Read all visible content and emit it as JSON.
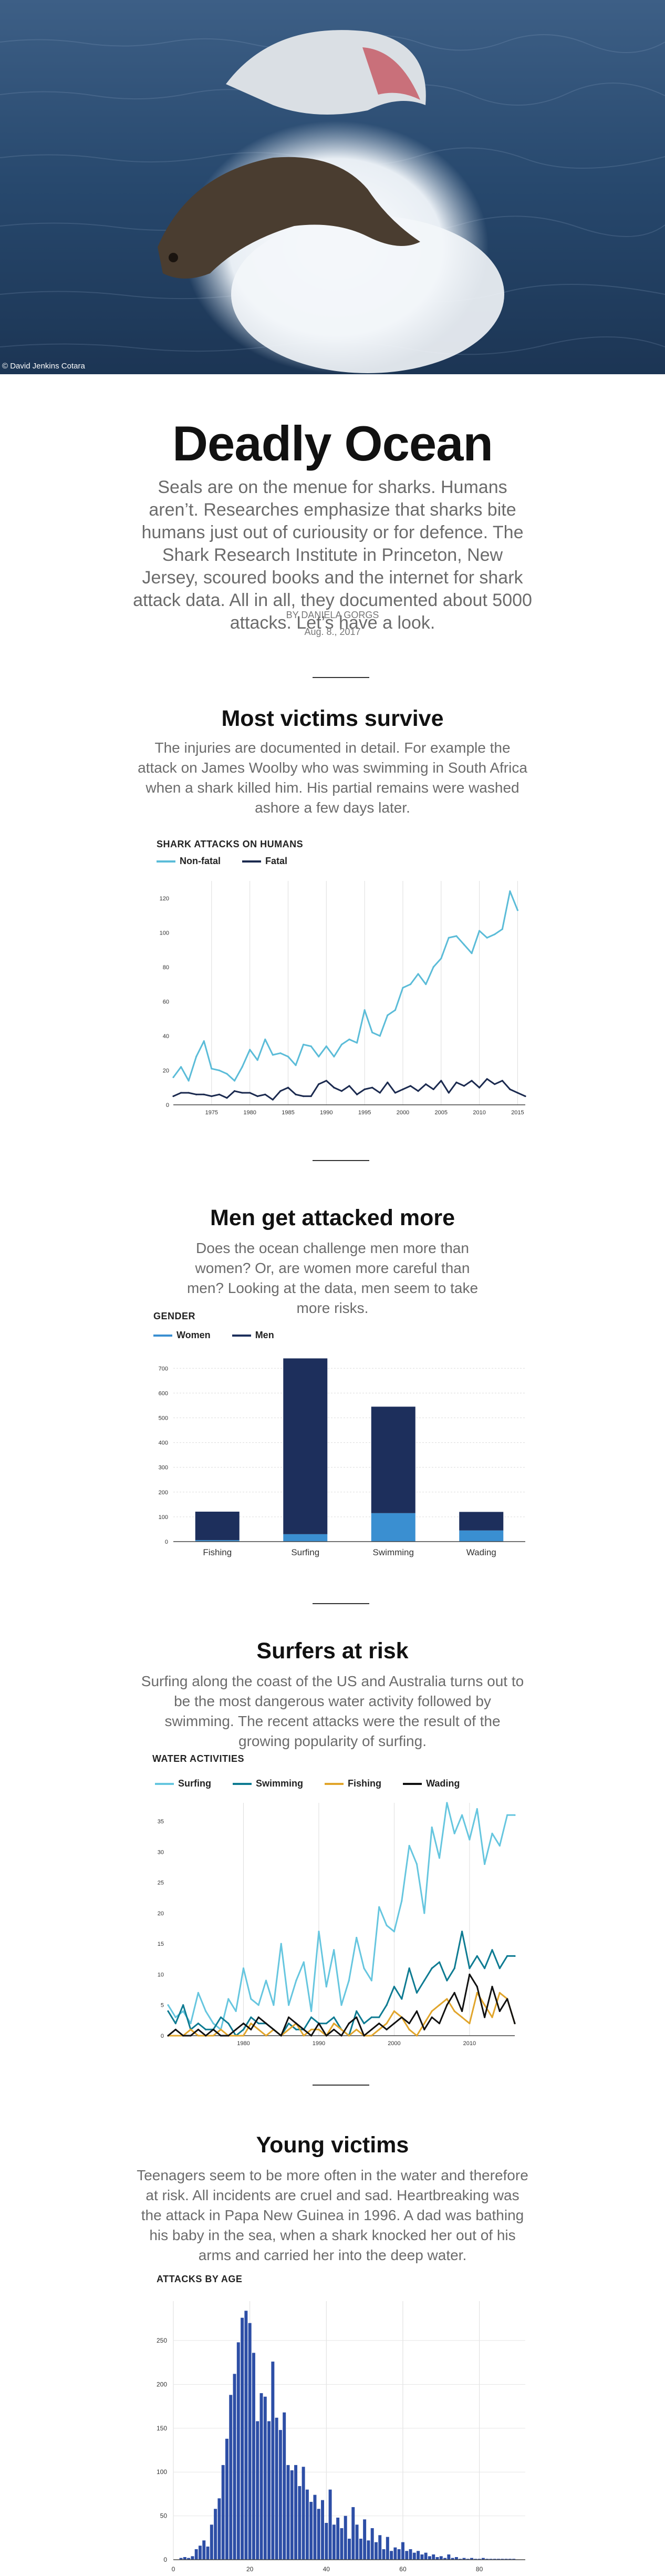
{
  "hero": {
    "credit": "© David Jenkins Cotara"
  },
  "article": {
    "title": "Deadly Ocean",
    "lead": "Seals are on the menue for sharks. Humans aren’t. Researches emphasize that sharks bite humans just out of curiousity or for defence. The Shark Research Institute in Princeton, New Jersey, scoured books and the internet for shark attack data.  All in all, they documented about 5000 attacks. Let’s  have a look.",
    "byline": "BY  DANIELA GORGS",
    "date": "Aug. 8., 2017"
  },
  "sections": [
    {
      "heading": "Most victims survive",
      "text": "The injuries are documented in detail. For example the attack on James Woolby who was swimming in South Africa when a shark killed him. His partial remains were washed ashore a few days later."
    },
    {
      "heading": "Men get attacked more",
      "text": "Does the ocean challenge men more than women? Or, are women more careful than men? Looking at the data, men seem to take more risks."
    },
    {
      "heading": "Surfers at risk",
      "text": "Surfing along the coast of the US and Australia turns out to be the most dangerous water activity followed by swimming. The recent attacks were the result of the growing popularity of surfing."
    },
    {
      "heading": "Young victims",
      "text": "Teenagers seem to be more often in the water and therefore at risk. All incidents are cruel and sad. Heartbreaking was the attack in Papa New Guinea in 1996. A dad was bathing his baby in the sea, when a shark knocked her out of his arms and carried her into the deep water."
    }
  ],
  "chart_data": [
    {
      "type": "line",
      "title": "SHARK ATTACKS ON HUMANS",
      "x": [
        1970,
        1971,
        1972,
        1973,
        1974,
        1975,
        1976,
        1977,
        1978,
        1979,
        1980,
        1981,
        1982,
        1983,
        1984,
        1985,
        1986,
        1987,
        1988,
        1989,
        1990,
        1991,
        1992,
        1993,
        1994,
        1995,
        1996,
        1997,
        1998,
        1999,
        2000,
        2001,
        2002,
        2003,
        2004,
        2005,
        2006,
        2007,
        2008,
        2009,
        2010,
        2011,
        2012,
        2013,
        2014,
        2015,
        2016
      ],
      "series": [
        {
          "name": "Non-fatal",
          "color": "#5bbcd8",
          "values": [
            16,
            22,
            14,
            28,
            37,
            21,
            20,
            18,
            14,
            22,
            32,
            26,
            38,
            29,
            30,
            28,
            23,
            35,
            34,
            28,
            34,
            28,
            35,
            38,
            36,
            55,
            42,
            40,
            52,
            55,
            68,
            70,
            76,
            70,
            80,
            85,
            97,
            98,
            93,
            88,
            101,
            97,
            99,
            102,
            124,
            113,
            null
          ]
        },
        {
          "name": "Fatal",
          "color": "#1b2a4f",
          "values": [
            5,
            7,
            7,
            6,
            6,
            5,
            6,
            4,
            8,
            7,
            7,
            5,
            6,
            3,
            8,
            10,
            6,
            5,
            5,
            12,
            14,
            10,
            8,
            11,
            6,
            9,
            10,
            7,
            13,
            7,
            9,
            11,
            8,
            12,
            9,
            14,
            7,
            13,
            11,
            14,
            10,
            15,
            12,
            14,
            9,
            7,
            5
          ]
        }
      ],
      "xticks": [
        1975,
        1980,
        1985,
        1990,
        1995,
        2000,
        2005,
        2010,
        2015
      ],
      "yticks": [
        0,
        20,
        40,
        60,
        80,
        100,
        120
      ],
      "ylim": [
        0,
        130
      ],
      "grid": "vertical"
    },
    {
      "type": "bar",
      "title": "GENDER",
      "categories": [
        "Fishing",
        "Surfing",
        "Swimming",
        "Wading"
      ],
      "series": [
        {
          "name": "Women",
          "color": "#3a8fd1",
          "values": [
            6,
            30,
            115,
            45
          ]
        },
        {
          "name": "Men",
          "color": "#1d2f5c",
          "values": [
            115,
            710,
            430,
            75
          ]
        }
      ],
      "stacked": true,
      "yticks": [
        0,
        100,
        200,
        300,
        400,
        500,
        600,
        700
      ],
      "ylim": [
        0,
        760
      ],
      "grid": "horizontal"
    },
    {
      "type": "line",
      "title": "WATER ACTIVITIES",
      "x": [
        1970,
        1971,
        1972,
        1973,
        1974,
        1975,
        1976,
        1977,
        1978,
        1979,
        1980,
        1981,
        1982,
        1983,
        1984,
        1985,
        1986,
        1987,
        1988,
        1989,
        1990,
        1991,
        1992,
        1993,
        1994,
        1995,
        1996,
        1997,
        1998,
        1999,
        2000,
        2001,
        2002,
        2003,
        2004,
        2005,
        2006,
        2007,
        2008,
        2009,
        2010,
        2011,
        2012,
        2013,
        2014,
        2015,
        2016
      ],
      "series": [
        {
          "name": "Surfing",
          "color": "#66c6df",
          "values": [
            5,
            3,
            4,
            2,
            7,
            4,
            2,
            1,
            6,
            4,
            11,
            6,
            5,
            9,
            5,
            15,
            5,
            9,
            12,
            4,
            17,
            8,
            14,
            5,
            9,
            16,
            11,
            9,
            21,
            18,
            17,
            22,
            31,
            28,
            20,
            34,
            29,
            38,
            33,
            36,
            32,
            37,
            28,
            33,
            31,
            36,
            36
          ]
        },
        {
          "name": "Swimming",
          "color": "#0e7b92",
          "values": [
            4,
            2,
            5,
            1,
            2,
            1,
            1,
            3,
            2,
            0,
            1,
            3,
            2,
            2,
            1,
            0,
            2,
            1,
            1,
            3,
            2,
            2,
            3,
            1,
            0,
            4,
            2,
            3,
            3,
            5,
            8,
            6,
            11,
            7,
            9,
            11,
            12,
            9,
            11,
            17,
            11,
            13,
            11,
            14,
            11,
            13,
            13
          ]
        },
        {
          "name": "Fishing",
          "color": "#e1a52b",
          "values": [
            0,
            0,
            0,
            1,
            0,
            0,
            0,
            1,
            0,
            0,
            0,
            2,
            1,
            0,
            1,
            0,
            1,
            2,
            0,
            1,
            1,
            0,
            2,
            1,
            0,
            1,
            0,
            0,
            1,
            2,
            4,
            3,
            1,
            0,
            2,
            4,
            5,
            6,
            4,
            3,
            2,
            7,
            5,
            3,
            7,
            6,
            2
          ]
        },
        {
          "name": "Wading",
          "color": "#111111",
          "values": [
            0,
            1,
            0,
            0,
            1,
            0,
            1,
            0,
            0,
            1,
            2,
            1,
            3,
            2,
            1,
            0,
            3,
            2,
            1,
            0,
            2,
            0,
            1,
            0,
            2,
            3,
            0,
            1,
            2,
            1,
            2,
            3,
            2,
            4,
            1,
            3,
            2,
            5,
            7,
            4,
            10,
            8,
            3,
            8,
            4,
            6,
            2
          ]
        }
      ],
      "xticks": [
        1980,
        1990,
        2000,
        2010
      ],
      "yticks": [
        0,
        5,
        10,
        15,
        20,
        25,
        30,
        35
      ],
      "ylim": [
        0,
        38
      ],
      "grid": "vertical"
    },
    {
      "type": "bar",
      "title": "ATTACKS BY AGE",
      "categories": [
        2,
        3,
        4,
        5,
        6,
        7,
        8,
        9,
        10,
        11,
        12,
        13,
        14,
        15,
        16,
        17,
        18,
        19,
        20,
        21,
        22,
        23,
        24,
        25,
        26,
        27,
        28,
        29,
        30,
        31,
        32,
        33,
        34,
        35,
        36,
        37,
        38,
        39,
        40,
        41,
        42,
        43,
        44,
        45,
        46,
        47,
        48,
        49,
        50,
        51,
        52,
        53,
        54,
        55,
        56,
        57,
        58,
        59,
        60,
        61,
        62,
        63,
        64,
        65,
        66,
        67,
        68,
        69,
        70,
        71,
        72,
        73,
        74,
        75,
        76,
        77,
        78,
        79,
        80,
        81,
        82,
        83,
        84,
        85,
        86,
        87,
        88,
        89
      ],
      "values": [
        2,
        3,
        2,
        4,
        12,
        16,
        22,
        15,
        40,
        58,
        70,
        108,
        138,
        188,
        212,
        248,
        276,
        284,
        270,
        236,
        158,
        190,
        186,
        158,
        226,
        162,
        148,
        168,
        108,
        102,
        108,
        84,
        106,
        80,
        66,
        74,
        58,
        68,
        42,
        80,
        40,
        48,
        36,
        50,
        24,
        60,
        40,
        24,
        46,
        22,
        36,
        20,
        28,
        12,
        26,
        10,
        14,
        12,
        20,
        10,
        12,
        8,
        10,
        6,
        8,
        4,
        6,
        3,
        4,
        2,
        6,
        2,
        3,
        1,
        2,
        1,
        2,
        1,
        1,
        2,
        1,
        1,
        1,
        1,
        1,
        1,
        1,
        1
      ],
      "color": "#2d4ea6",
      "xticks": [
        0,
        20,
        40,
        60,
        80
      ],
      "yticks": [
        0,
        50,
        100,
        150,
        200,
        250
      ],
      "ylim": [
        0,
        295
      ],
      "grid": "both"
    }
  ]
}
